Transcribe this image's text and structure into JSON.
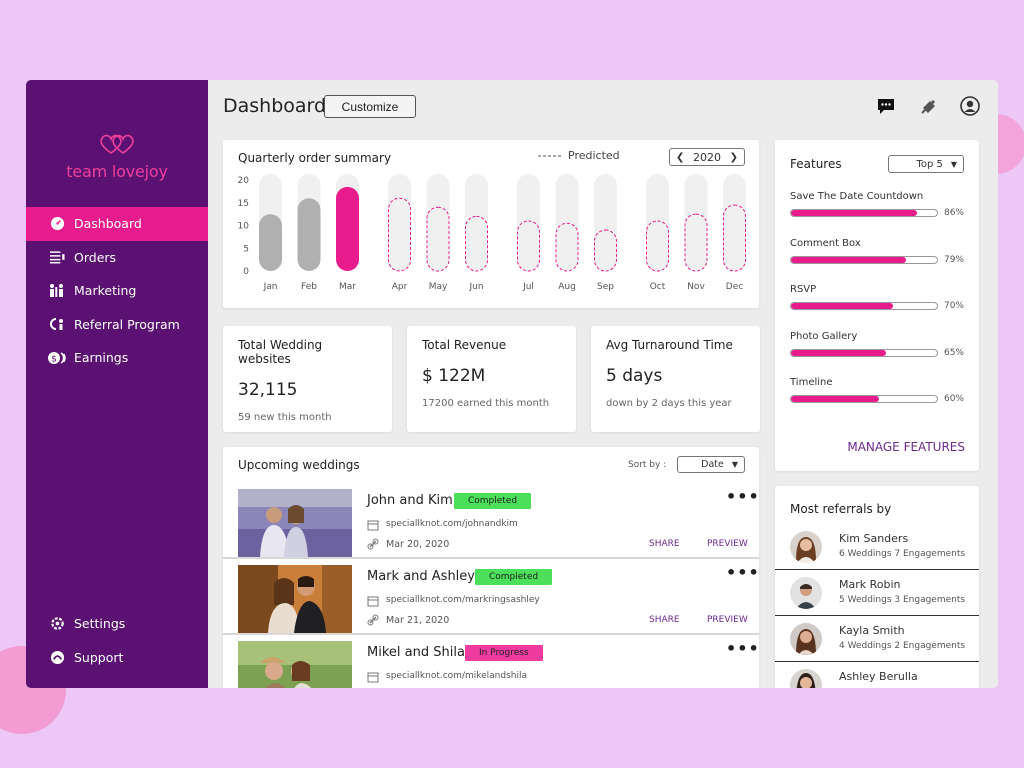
{
  "app": {
    "brand_name": "team lovejoy"
  },
  "sidebar": {
    "items": [
      {
        "label": "Dashboard",
        "icon": "gauge-icon",
        "active": true
      },
      {
        "label": "Orders",
        "icon": "list-icon"
      },
      {
        "label": "Marketing",
        "icon": "people-icon"
      },
      {
        "label": "Referral Program",
        "icon": "referral-icon"
      },
      {
        "label": "Earnings",
        "icon": "coins-icon"
      }
    ],
    "bottom_items": [
      {
        "label": "Settings",
        "icon": "gear-icon"
      },
      {
        "label": "Support",
        "icon": "support-icon"
      }
    ]
  },
  "header": {
    "title": "Dashboard",
    "customize_label": "Customize",
    "icons": [
      "chat-icon",
      "bell-icon",
      "user-icon"
    ]
  },
  "quarterly": {
    "title": "Quarterly order summary",
    "predicted_label": "Predicted",
    "year": "2020",
    "y_ticks": [
      "20",
      "15",
      "10",
      "5",
      "0"
    ]
  },
  "chart_data": {
    "type": "bar",
    "title": "Quarterly order summary",
    "categories": [
      "Jan",
      "Feb",
      "Mar",
      "Apr",
      "May",
      "Jun",
      "Jul",
      "Aug",
      "Sep",
      "Oct",
      "Nov",
      "Dec"
    ],
    "series": [
      {
        "name": "",
        "values": [
          12.5,
          16,
          18.5,
          null,
          null,
          null,
          null,
          null,
          null,
          null,
          null,
          null
        ]
      },
      {
        "name": "Predicted",
        "values": [
          null,
          null,
          null,
          16,
          14,
          12,
          11,
          10.5,
          9,
          11,
          12.5,
          14.5
        ]
      }
    ],
    "ylim": [
      0,
      20
    ],
    "y_ticks": [
      0,
      5,
      10,
      15,
      20
    ],
    "colors": {
      "past": "#b0b0b0",
      "current": "#e81c8c",
      "predicted": "#e81c8c",
      "track": "#f0f0f0"
    }
  },
  "stats": [
    {
      "label": "Total Wedding websites",
      "value": "32,115",
      "sub": "59 new this month"
    },
    {
      "label": "Total Revenue",
      "value": "$ 122M",
      "sub": "17200 earned this month"
    },
    {
      "label": "Avg Turnaround Time",
      "value": "5 days",
      "sub": "down by 2 days this year"
    }
  ],
  "weddings": {
    "title": "Upcoming weddings",
    "sort_label": "Sort by :",
    "sort_value": "Date",
    "share_label": "SHARE",
    "preview_label": "PREVIEW",
    "items": [
      {
        "name": "John and Kim",
        "status": "Completed",
        "status_color": "#4ce05a",
        "site": "speciallknot.com/johnandkim",
        "date": "Mar 20, 2020"
      },
      {
        "name": "Mark and Ashley",
        "status": "Completed",
        "status_color": "#4ce05a",
        "site": "speciallknot.com/markringsashley",
        "date": "Mar 21, 2020"
      },
      {
        "name": "Mikel and Shila",
        "status": "In Progress",
        "status_color": "#ef3a9f",
        "site": "speciallknot.com/mikelandshila",
        "date": ""
      }
    ]
  },
  "features": {
    "title": "Features",
    "filter_value": "Top 5",
    "items": [
      {
        "label": "Save The Date Countdown",
        "pct_label": "86%",
        "value": 0.86
      },
      {
        "label": "Comment Box",
        "pct_label": "79%",
        "value": 0.79
      },
      {
        "label": "RSVP",
        "pct_label": "70%",
        "value": 0.7
      },
      {
        "label": "Photo Gallery",
        "pct_label": "65%",
        "value": 0.65
      },
      {
        "label": "Timeline",
        "pct_label": "60%",
        "value": 0.6
      }
    ],
    "manage_label": "MANAGE FEATURES"
  },
  "referrals": {
    "title": "Most referrals by",
    "items": [
      {
        "name": "Kim Sanders",
        "sub": "6 Weddings 7 Engagements"
      },
      {
        "name": "Mark Robin",
        "sub": "5 Weddings 3 Engagements"
      },
      {
        "name": "Kayla Smith",
        "sub": "4 Weddings 2 Engagements"
      },
      {
        "name": "Ashley Berulla",
        "sub": ""
      }
    ]
  }
}
